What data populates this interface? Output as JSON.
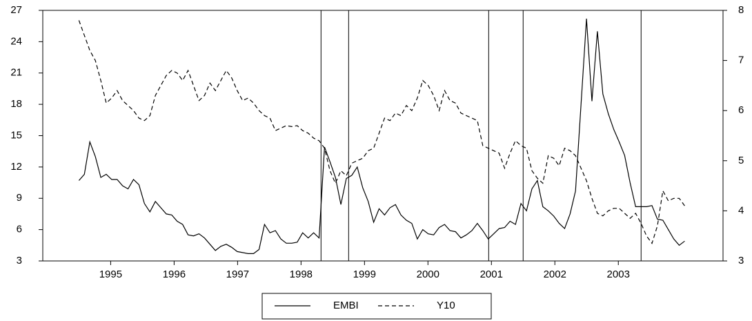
{
  "chart_data": {
    "type": "line",
    "x": [
      1995,
      1995.086,
      1995.172,
      1995.258,
      1995.344,
      1995.43,
      1995.516,
      1995.602,
      1995.688,
      1995.774,
      1995.86,
      1995.946,
      1996.032,
      1996.118,
      1996.204,
      1996.29,
      1996.376,
      1996.462,
      1996.548,
      1996.634,
      1996.72,
      1996.806,
      1996.892,
      1996.978,
      1997.064,
      1997.15,
      1997.236,
      1997.322,
      1997.408,
      1997.494,
      1997.58,
      1997.666,
      1997.752,
      1997.838,
      1997.924,
      1998.01,
      1998.096,
      1998.182,
      1998.268,
      1998.354,
      1998.44,
      1998.526,
      1998.612,
      1998.698,
      1998.784,
      1998.87,
      1998.956,
      1999.042,
      1999.128,
      1999.214,
      1999.3,
      1999.386,
      1999.472,
      1999.558,
      1999.644,
      1999.73,
      1999.816,
      1999.902,
      1999.988,
      2000.074,
      2000.16,
      2000.246,
      2000.332,
      2000.418,
      2000.504,
      2000.59,
      2000.676,
      2000.762,
      2000.848,
      2000.934,
      2001.02,
      2001.106,
      2001.192,
      2001.278,
      2001.364,
      2001.45,
      2001.536,
      2001.622,
      2001.708,
      2001.794,
      2001.88,
      2001.966,
      2002.052,
      2002.138,
      2002.224,
      2002.31,
      2002.396,
      2002.482,
      2002.568,
      2002.654,
      2002.74,
      2002.826,
      2002.912,
      2002.998,
      2003.084,
      2003.17,
      2003.256,
      2003.342,
      2003.428,
      2003.514,
      2003.6,
      2003.686,
      2003.772,
      2003.858,
      2003.944,
      2004.03,
      2004.116,
      2004.202,
      2004.288,
      2004.374,
      2004.46,
      2004.546
    ],
    "series": [
      {
        "name": "EMBI",
        "color": "#000000",
        "dash": false,
        "axis": "y",
        "values": [
          10.7,
          11.3,
          14.4,
          13.0,
          11.0,
          11.3,
          10.8,
          10.8,
          10.2,
          9.9,
          10.8,
          10.3,
          8.5,
          7.7,
          8.7,
          8.1,
          7.5,
          7.4,
          6.8,
          6.5,
          5.5,
          5.4,
          5.6,
          5.2,
          4.6,
          4.0,
          4.4,
          4.6,
          4.3,
          3.9,
          3.8,
          3.7,
          3.7,
          4.1,
          6.5,
          5.7,
          5.9,
          5.1,
          4.7,
          4.7,
          4.8,
          5.7,
          5.2,
          5.7,
          5.2,
          13.9,
          12.5,
          11.0,
          8.4,
          10.9,
          11.2,
          12.0,
          10.0,
          8.7,
          6.7,
          8.0,
          7.4,
          8.1,
          8.4,
          7.4,
          6.9,
          6.6,
          5.1,
          6.0,
          5.6,
          5.5,
          6.2,
          6.5,
          5.9,
          5.8,
          5.2,
          5.5,
          5.9,
          6.6,
          5.9,
          5.1,
          5.6,
          6.1,
          6.2,
          6.8,
          6.5,
          8.5,
          7.8,
          9.9,
          10.7,
          8.2,
          7.8,
          7.3,
          6.6,
          6.1,
          7.5,
          9.7,
          18.0,
          26.2,
          18.3,
          25.0,
          19.0,
          17.1,
          15.6,
          14.4,
          13.1,
          10.5,
          8.2,
          8.2,
          8.2,
          8.3,
          7.0,
          6.9,
          6.0,
          5.1,
          4.5,
          4.9
        ]
      },
      {
        "name": "Y10",
        "color": "#000000",
        "dash": true,
        "axis": "y2",
        "values": [
          7.8,
          7.5,
          7.2,
          7.0,
          6.6,
          6.15,
          6.25,
          6.4,
          6.2,
          6.1,
          6.0,
          5.85,
          5.8,
          5.9,
          6.3,
          6.5,
          6.7,
          6.8,
          6.75,
          6.6,
          6.8,
          6.5,
          6.2,
          6.3,
          6.55,
          6.4,
          6.6,
          6.8,
          6.65,
          6.4,
          6.2,
          6.25,
          6.15,
          6.0,
          5.9,
          5.85,
          5.6,
          5.65,
          5.7,
          5.68,
          5.7,
          5.6,
          5.55,
          5.45,
          5.4,
          5.25,
          4.8,
          4.55,
          4.8,
          4.7,
          4.95,
          5.0,
          5.05,
          5.2,
          5.25,
          5.55,
          5.85,
          5.8,
          5.95,
          5.9,
          6.1,
          6.0,
          6.25,
          6.6,
          6.5,
          6.3,
          6.0,
          6.4,
          6.2,
          6.15,
          5.95,
          5.9,
          5.85,
          5.8,
          5.3,
          5.25,
          5.2,
          5.15,
          4.85,
          5.15,
          5.4,
          5.3,
          5.25,
          4.8,
          4.65,
          4.55,
          5.1,
          5.05,
          4.9,
          5.25,
          5.2,
          5.1,
          4.85,
          4.6,
          4.25,
          3.95,
          3.9,
          4.0,
          4.05,
          4.05,
          3.95,
          3.85,
          3.95,
          3.75,
          3.5,
          3.35,
          3.7,
          4.4,
          4.2,
          4.25,
          4.25,
          4.1
        ]
      }
    ],
    "vlines": [
      1998.815,
      1999.25,
      2001.457,
      2002.0,
      2003.859
    ],
    "xlim": [
      1994.43,
      2005.15
    ],
    "xticks": [
      {
        "value": 1995.5,
        "label": "1995"
      },
      {
        "value": 1996.5,
        "label": "1996"
      },
      {
        "value": 1997.5,
        "label": "1997"
      },
      {
        "value": 1998.5,
        "label": "1998"
      },
      {
        "value": 1999.5,
        "label": "1999"
      },
      {
        "value": 2000.5,
        "label": "2000"
      },
      {
        "value": 2001.5,
        "label": "2001"
      },
      {
        "value": 2002.5,
        "label": "2002"
      },
      {
        "value": 2003.5,
        "label": "2003"
      }
    ],
    "ylim": [
      3,
      27
    ],
    "yticks": [
      3,
      6,
      9,
      12,
      15,
      18,
      21,
      24,
      27
    ],
    "y2lim": [
      3,
      8
    ],
    "y2ticks": [
      3,
      4,
      5,
      6,
      7,
      8
    ],
    "grid": false,
    "legend": "bottom"
  }
}
